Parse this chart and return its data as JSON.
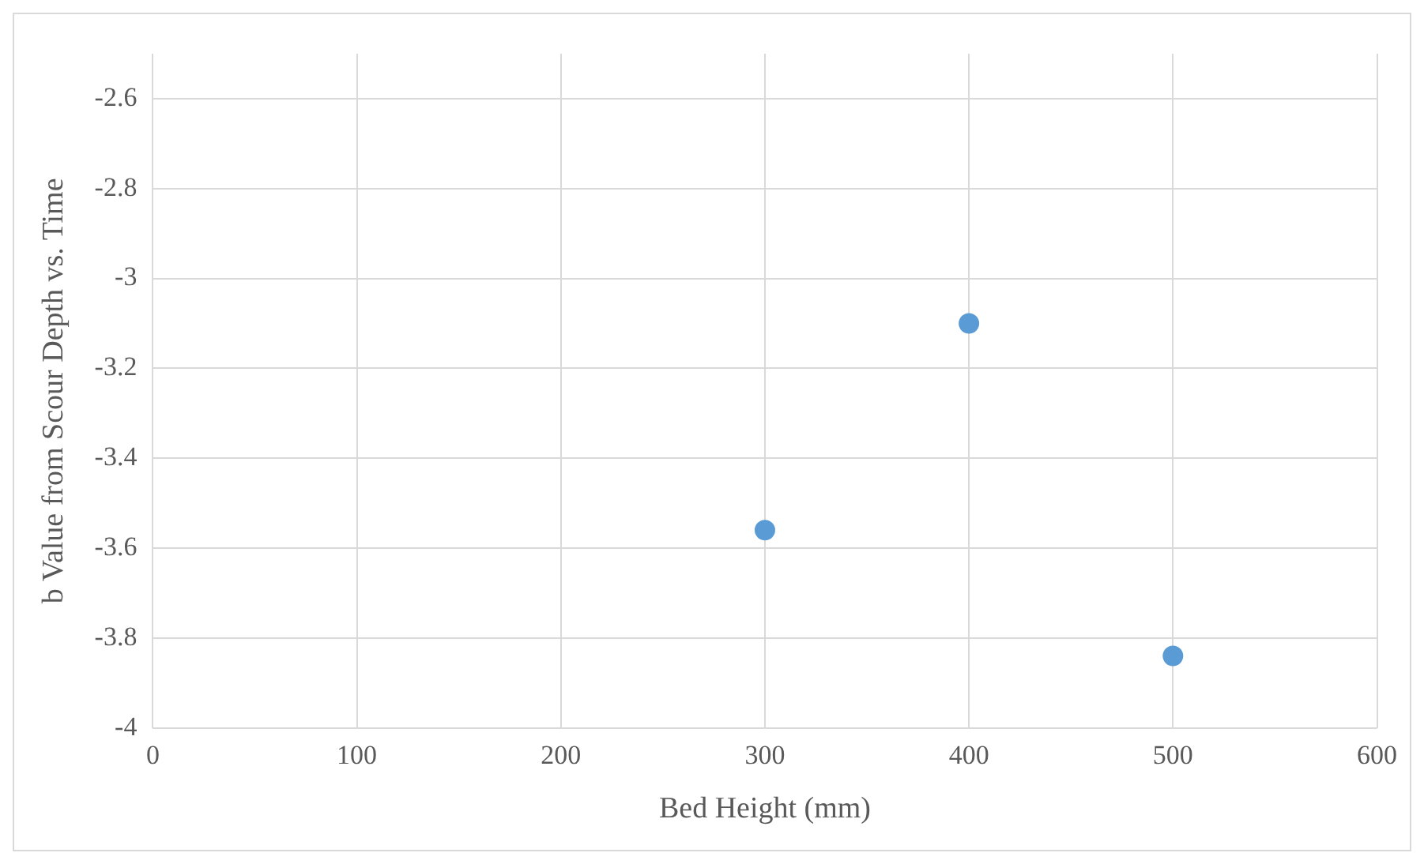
{
  "chart_data": {
    "type": "scatter",
    "xlabel": "Bed Height (mm)",
    "ylabel": "b Value from Scour Depth vs. Time",
    "x": [
      300,
      400,
      500
    ],
    "series": [
      {
        "color": "#5b9bd5",
        "values": [
          -3.56,
          -3.1,
          -3.84
        ]
      }
    ],
    "xlim": [
      0,
      600
    ],
    "xticks": [
      0,
      100,
      200,
      300,
      400,
      500,
      600
    ],
    "ylim": [
      -4,
      -2.5
    ],
    "yticks": [
      -4,
      -3.8,
      -3.6,
      -3.4,
      -3.2,
      -3,
      -2.8,
      -2.6
    ],
    "grid": true,
    "legend": false,
    "marker": "circle"
  }
}
